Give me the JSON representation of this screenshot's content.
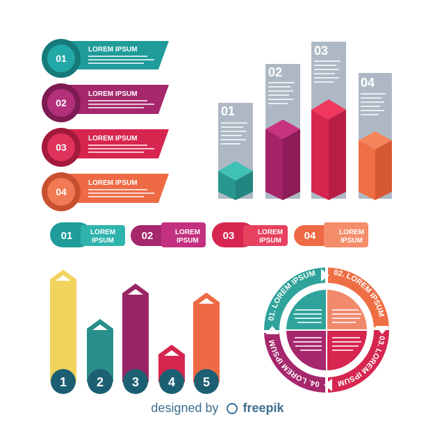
{
  "banners": [
    {
      "num": "01",
      "title": "LOREM IPSUM",
      "color": "#1f9c9a",
      "dark": "#157a79"
    },
    {
      "num": "02",
      "title": "LOREM IPSUM",
      "color": "#a5276c",
      "dark": "#7d1b52"
    },
    {
      "num": "03",
      "title": "LOREM IPSUM",
      "color": "#d6264f",
      "dark": "#a31a3b"
    },
    {
      "num": "04",
      "title": "LOREM IPSUM",
      "color": "#ee6a45",
      "dark": "#c84f2f"
    }
  ],
  "bars3d": [
    {
      "num": "01",
      "level": 0.25,
      "color": "#2ea39b"
    },
    {
      "num": "02",
      "level": 0.55,
      "color": "#b3246c"
    },
    {
      "num": "03",
      "level": 0.75,
      "color": "#e0264f"
    },
    {
      "num": "04",
      "level": 0.45,
      "color": "#ef6f45"
    }
  ],
  "pills": [
    {
      "num": "01",
      "line1": "LOREM",
      "line2": "IPSUM",
      "color": "#1f9c9a"
    },
    {
      "num": "02",
      "line1": "LOREM",
      "line2": "IPSUM",
      "color": "#a5276c"
    },
    {
      "num": "03",
      "line1": "LOREM",
      "line2": "IPSUM",
      "color": "#d6264f"
    },
    {
      "num": "04",
      "line1": "LOREM",
      "line2": "IPSUM",
      "color": "#ee6a45"
    }
  ],
  "arrows": [
    {
      "num": "1",
      "level": 0.9,
      "color": "#f2d35e"
    },
    {
      "num": "2",
      "level": 0.45,
      "color": "#2a8f8a"
    },
    {
      "num": "3",
      "level": 0.77,
      "color": "#9a2565"
    },
    {
      "num": "4",
      "level": 0.25,
      "color": "#d6264f"
    },
    {
      "num": "5",
      "level": 0.7,
      "color": "#ee6a45"
    }
  ],
  "ring": {
    "segments": [
      {
        "label": "01. LOREM IPSUM",
        "color": "#2ea39b"
      },
      {
        "label": "02. LOREM IPSUM",
        "color": "#ef6f45"
      },
      {
        "label": "03. LOREM IPSUM",
        "color": "#d6264f"
      },
      {
        "label": "04. LOREM IPSUM",
        "color": "#a5276c"
      }
    ]
  },
  "credit": {
    "prefix": "designed by",
    "brand": "freepik"
  }
}
